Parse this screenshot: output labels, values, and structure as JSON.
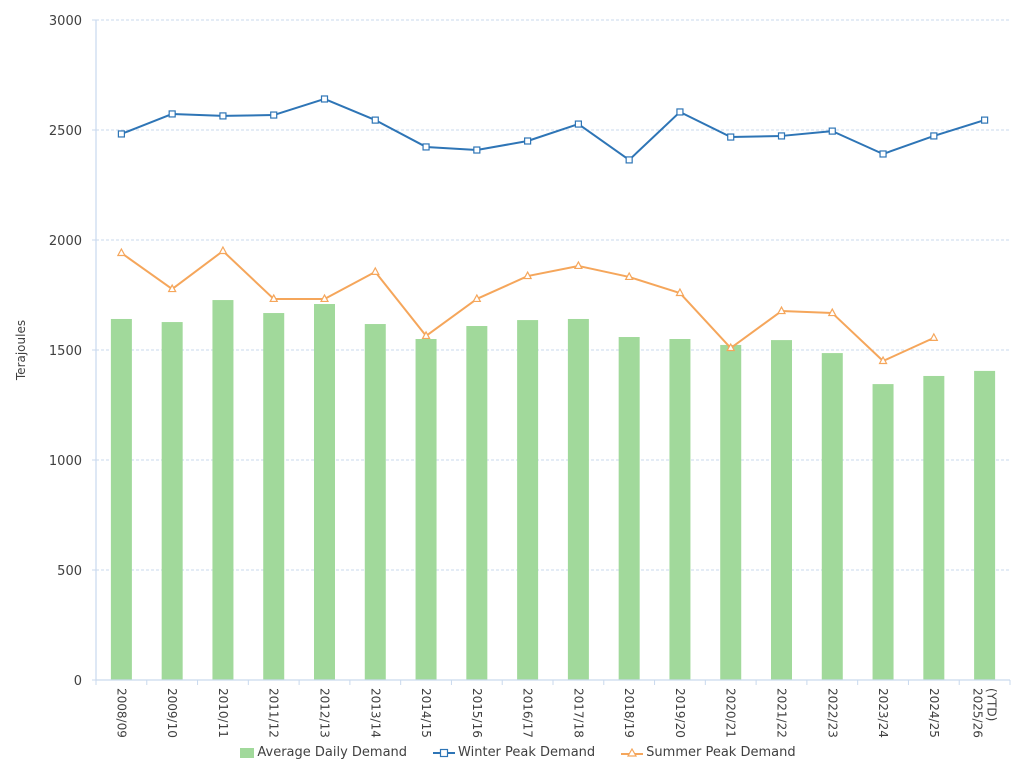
{
  "chart_data": {
    "type": "bar",
    "title": "",
    "xlabel": "",
    "ylabel": "Terajoules",
    "ylim": [
      0,
      3000
    ],
    "yticks": [
      0,
      500,
      1000,
      1500,
      2000,
      2500,
      3000
    ],
    "grid": true,
    "legend_position": "bottom",
    "categories": [
      "2008/09",
      "2009/10",
      "2010/11",
      "2011/12",
      "2012/13",
      "2013/14",
      "2014/15",
      "2015/16",
      "2016/17",
      "2017/18",
      "2018/19",
      "2019/20",
      "2020/21",
      "2021/22",
      "2022/23",
      "2023/24",
      "2024/25",
      "2025/26 (YTD)"
    ],
    "series": [
      {
        "name": "Average Daily Demand",
        "kind": "bar",
        "color": "#a1d99b",
        "values": [
          1641,
          1627,
          1727,
          1668,
          1709,
          1618,
          1550,
          1609,
          1636,
          1641,
          1559,
          1550,
          1523,
          1545,
          1486,
          1345,
          1382,
          1405
        ]
      },
      {
        "name": "Winter Peak Demand",
        "kind": "line",
        "marker": "square",
        "color": "#2e75b6",
        "values": [
          2482,
          2573,
          2564,
          2568,
          2641,
          2545,
          2423,
          2409,
          2450,
          2527,
          2364,
          2582,
          2468,
          2473,
          2495,
          2391,
          2473,
          2545
        ]
      },
      {
        "name": "Summer Peak Demand",
        "kind": "line",
        "marker": "triangle",
        "color": "#f5a65b",
        "values": [
          1941,
          1777,
          1950,
          1732,
          1732,
          1855,
          1564,
          1732,
          1836,
          1882,
          1832,
          1759,
          1509,
          1677,
          1668,
          1450,
          1555,
          null
        ]
      }
    ]
  },
  "legend": {
    "items": [
      "Average Daily Demand",
      "Winter Peak Demand",
      "Summer Peak Demand"
    ]
  }
}
